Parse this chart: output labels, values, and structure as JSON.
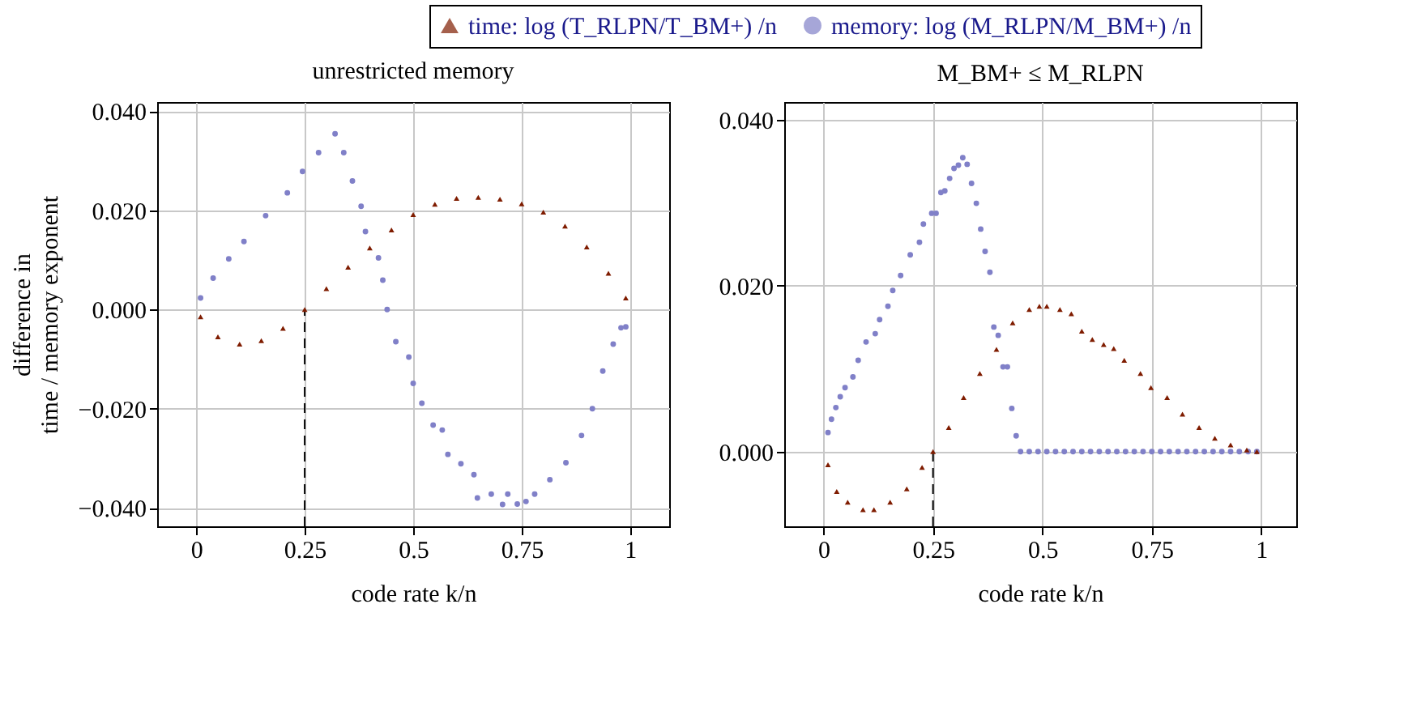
{
  "chart_data": [
    {
      "type": "scatter",
      "title": "unrestricted memory",
      "xlabel": "code rate k/n",
      "ylabel": "difference in\ntime / memory exponent",
      "legend": "top",
      "grid": true,
      "xlim": [
        -0.09,
        1.09
      ],
      "xticks": [
        0,
        0.25,
        0.5,
        0.75,
        1
      ],
      "ylim": [
        -0.0437,
        0.0418
      ],
      "yticks": [
        {
          "value": -0.04,
          "label": "−0.040"
        },
        {
          "value": -0.02,
          "label": "−0.020"
        },
        {
          "value": 0,
          "label": "0.000"
        },
        {
          "value": 0.02,
          "label": "0.020"
        },
        {
          "value": 0.04,
          "label": "0.040"
        }
      ],
      "ref_lines": [
        {
          "axis": "x",
          "value": 0.25,
          "color": "#000000",
          "line_style": "dashed"
        }
      ],
      "series": [
        {
          "name": "time: log (T_RLPN/T_BM+) /n",
          "color": "#7f1c00",
          "marker": "triangle",
          "x": [
            0.01,
            0.05,
            0.1,
            0.15,
            0.2,
            0.25,
            0.3,
            0.35,
            0.4,
            0.45,
            0.5,
            0.55,
            0.6,
            0.65,
            0.7,
            0.75,
            0.8,
            0.85,
            0.9,
            0.95,
            0.99
          ],
          "values": [
            -0.0015,
            -0.0055,
            -0.007,
            -0.0063,
            -0.0038,
            0.0,
            0.0042,
            0.0085,
            0.0124,
            0.016,
            0.0191,
            0.0212,
            0.0224,
            0.0226,
            0.0222,
            0.0213,
            0.0196,
            0.0168,
            0.0126,
            0.0073,
            0.0023
          ]
        },
        {
          "name": "memory: log (M_RLPN/M_BM+) /n",
          "color": "#8080c8",
          "marker": "circle",
          "x": [
            0.01,
            0.039,
            0.075,
            0.11,
            0.16,
            0.21,
            0.245,
            0.282,
            0.32,
            0.34,
            0.36,
            0.38,
            0.39,
            0.42,
            0.43,
            0.44,
            0.46,
            0.49,
            0.5,
            0.52,
            0.546,
            0.567,
            0.58,
            0.61,
            0.64,
            0.648,
            0.68,
            0.706,
            0.718,
            0.74,
            0.76,
            0.78,
            0.815,
            0.852,
            0.888,
            0.913,
            0.937,
            0.961,
            0.979,
            0.99
          ],
          "values": [
            0.0023,
            0.0063,
            0.0102,
            0.0137,
            0.0189,
            0.0235,
            0.0278,
            0.0316,
            0.0354,
            0.0316,
            0.0259,
            0.0208,
            0.0157,
            0.0104,
            0.0059,
            0.0,
            -0.0065,
            -0.0096,
            -0.0149,
            -0.0189,
            -0.0233,
            -0.0243,
            -0.0292,
            -0.0311,
            -0.0333,
            -0.038,
            -0.0372,
            -0.0393,
            -0.0372,
            -0.0392,
            -0.0387,
            -0.0372,
            -0.0343,
            -0.0309,
            -0.0254,
            -0.02,
            -0.0124,
            -0.007,
            -0.0037,
            -0.0035
          ]
        }
      ]
    },
    {
      "type": "scatter",
      "title": "M_BM+ ≤ M_RLPN",
      "xlabel": "code rate k/n",
      "legend": false,
      "grid": true,
      "xlim": [
        -0.09,
        1.08
      ],
      "xticks": [
        0,
        0.25,
        0.5,
        0.75,
        1
      ],
      "ylim": [
        -0.009,
        0.0421
      ],
      "yticks": [
        {
          "value": 0,
          "label": "0.000"
        },
        {
          "value": 0.02,
          "label": "0.020"
        },
        {
          "value": 0.04,
          "label": "0.040"
        }
      ],
      "ref_lines": [
        {
          "axis": "x",
          "value": 0.25,
          "color": "#000000",
          "line_style": "dashed"
        }
      ],
      "series": [
        {
          "color": "#7f1c00",
          "marker": "triangle",
          "x": [
            0.01,
            0.03,
            0.055,
            0.09,
            0.115,
            0.152,
            0.19,
            0.225,
            0.25,
            0.286,
            0.32,
            0.357,
            0.395,
            0.432,
            0.47,
            0.493,
            0.51,
            0.54,
            0.566,
            0.59,
            0.614,
            0.64,
            0.663,
            0.687,
            0.724,
            0.748,
            0.785,
            0.82,
            0.858,
            0.894,
            0.93,
            0.967,
            0.99
          ],
          "values": [
            -0.0016,
            -0.0048,
            -0.0061,
            -0.007,
            -0.007,
            -0.0061,
            -0.0045,
            -0.0019,
            0.0,
            0.0029,
            0.0065,
            0.0094,
            0.0123,
            0.0155,
            0.0171,
            0.0175,
            0.0175,
            0.0171,
            0.0166,
            0.0145,
            0.0135,
            0.0129,
            0.0124,
            0.011,
            0.0094,
            0.0077,
            0.0065,
            0.0045,
            0.0029,
            0.0016,
            0.0008,
            0.0002,
            0.0
          ]
        },
        {
          "color": "#8080c8",
          "marker": "circle",
          "x": [
            0.01,
            0.018,
            0.028,
            0.038,
            0.049,
            0.067,
            0.079,
            0.097,
            0.118,
            0.128,
            0.147,
            0.158,
            0.176,
            0.198,
            0.219,
            0.228,
            0.247,
            0.257,
            0.268,
            0.277,
            0.288,
            0.298,
            0.308,
            0.318,
            0.328,
            0.338,
            0.349,
            0.359,
            0.369,
            0.38,
            0.389,
            0.399,
            0.41,
            0.42,
            0.43,
            0.44,
            0.45,
            0.47,
            0.49,
            0.51,
            0.53,
            0.55,
            0.57,
            0.59,
            0.61,
            0.63,
            0.65,
            0.67,
            0.69,
            0.71,
            0.73,
            0.75,
            0.77,
            0.79,
            0.81,
            0.83,
            0.85,
            0.87,
            0.89,
            0.91,
            0.93,
            0.95,
            0.97,
            0.99
          ],
          "values": [
            0.0023,
            0.0039,
            0.0053,
            0.0066,
            0.0077,
            0.009,
            0.011,
            0.0132,
            0.0142,
            0.0159,
            0.0175,
            0.0194,
            0.0212,
            0.0237,
            0.0252,
            0.0274,
            0.0287,
            0.0287,
            0.0312,
            0.0314,
            0.0329,
            0.0341,
            0.0345,
            0.0354,
            0.0346,
            0.0323,
            0.0299,
            0.0268,
            0.0241,
            0.0216,
            0.015,
            0.014,
            0.0102,
            0.0102,
            0.0052,
            0.0019,
            0,
            0,
            0,
            0,
            0,
            0,
            0,
            0,
            0,
            0,
            0,
            0,
            0,
            0,
            0,
            0,
            0,
            0,
            0,
            0,
            0,
            0,
            0,
            0,
            0,
            0,
            0,
            0
          ]
        }
      ]
    }
  ]
}
